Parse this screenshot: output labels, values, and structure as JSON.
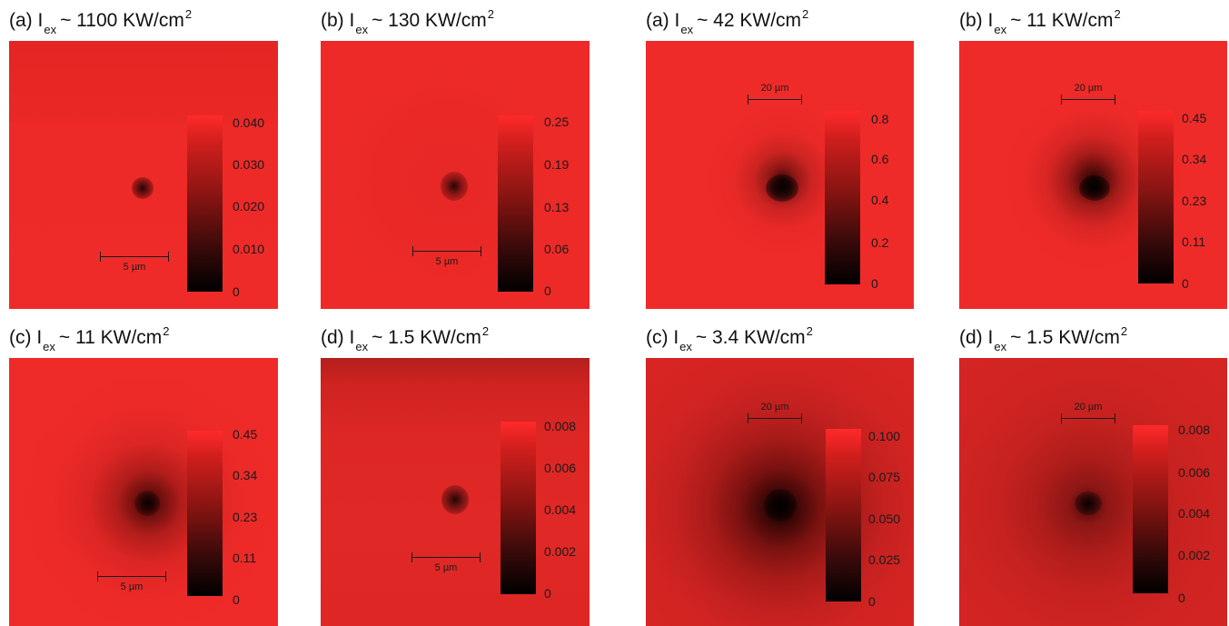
{
  "panels": [
    {
      "id": "left-a",
      "title": {
        "prefix": "(a) I",
        "sub": "ex",
        "mid": "~ 1100 KW/cm",
        "sup": "2"
      },
      "scalebar": "5 µm",
      "colorbar_ticks": [
        "0.040",
        "0.030",
        "0.020",
        "0.010",
        "0"
      ]
    },
    {
      "id": "left-b",
      "title": {
        "prefix": "(b) I",
        "sub": "ex",
        "mid": "~ 130 KW/cm",
        "sup": "2"
      },
      "scalebar": "5 µm",
      "colorbar_ticks": [
        "0.25",
        "0.19",
        "0.13",
        "0.06",
        "0"
      ]
    },
    {
      "id": "left-c",
      "title": {
        "prefix": "(c) I",
        "sub": "ex",
        "mid": "~ 11 KW/cm",
        "sup": "2"
      },
      "scalebar": "5 µm",
      "colorbar_ticks": [
        "0.45",
        "0.34",
        "0.23",
        "0.11",
        "0"
      ]
    },
    {
      "id": "left-d",
      "title": {
        "prefix": "(d) I",
        "sub": "ex",
        "mid": "~ 1.5 KW/cm",
        "sup": "2"
      },
      "scalebar": "5 µm",
      "colorbar_ticks": [
        "0.008",
        "0.006",
        "0.004",
        "0.002",
        "0"
      ]
    },
    {
      "id": "right-a",
      "title": {
        "prefix": "(a) I",
        "sub": "ex",
        "mid": "~ 42 KW/cm",
        "sup": "2"
      },
      "scalebar": "20 µm",
      "colorbar_ticks": [
        "0.8",
        "0.6",
        "0.4",
        "0.2",
        "0"
      ]
    },
    {
      "id": "right-b",
      "title": {
        "prefix": "(b) I",
        "sub": "ex",
        "mid": "~ 11 KW/cm",
        "sup": "2"
      },
      "scalebar": "20 µm",
      "colorbar_ticks": [
        "0.45",
        "0.34",
        "0.23",
        "0.11",
        "0"
      ]
    },
    {
      "id": "right-c",
      "title": {
        "prefix": "(c) I",
        "sub": "ex",
        "mid": "~ 3.4 KW/cm",
        "sup": "2"
      },
      "scalebar": "20 µm",
      "colorbar_ticks": [
        "0.100",
        "0.075",
        "0.050",
        "0.025",
        "0"
      ]
    },
    {
      "id": "right-d",
      "title": {
        "prefix": "(d) I",
        "sub": "ex",
        "mid": "~ 1.5 KW/cm",
        "sup": "2"
      },
      "scalebar": "20 µm",
      "colorbar_ticks": [
        "0.008",
        "0.006",
        "0.004",
        "0.002",
        "0"
      ]
    }
  ],
  "colors": {
    "image_red": "#ee2a28",
    "colorbar_top": "#ff2a2a",
    "colorbar_bottom": "#000000"
  }
}
